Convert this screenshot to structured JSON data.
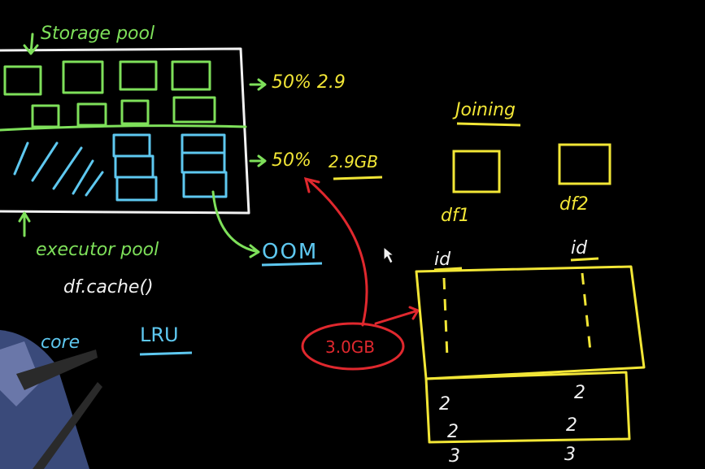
{
  "colors": {
    "background": "#000000",
    "green": "#7ee05a",
    "white": "#f2f2f2",
    "blue": "#5ec8f0",
    "yellow": "#f2e636",
    "red": "#e0282e"
  },
  "labels": {
    "storage_pool": "Storage pool",
    "storage_pct": "50% 2.9",
    "executor_pct": "50%",
    "executor_size": "2.9GB",
    "executor_pool": "executor pool",
    "df_cache": "df.cache()",
    "oom": "OOM",
    "core": "core",
    "lru": "LRU",
    "memory_needed": "3.0GB",
    "joining": "Joining",
    "df1": "df1",
    "df2": "df2",
    "id_left": "id",
    "id_right": "id",
    "val_left_1": "2",
    "val_left_2": "2",
    "val_left_3": "3",
    "val_right_1": "2",
    "val_right_2": "2",
    "val_right_3": "3"
  }
}
